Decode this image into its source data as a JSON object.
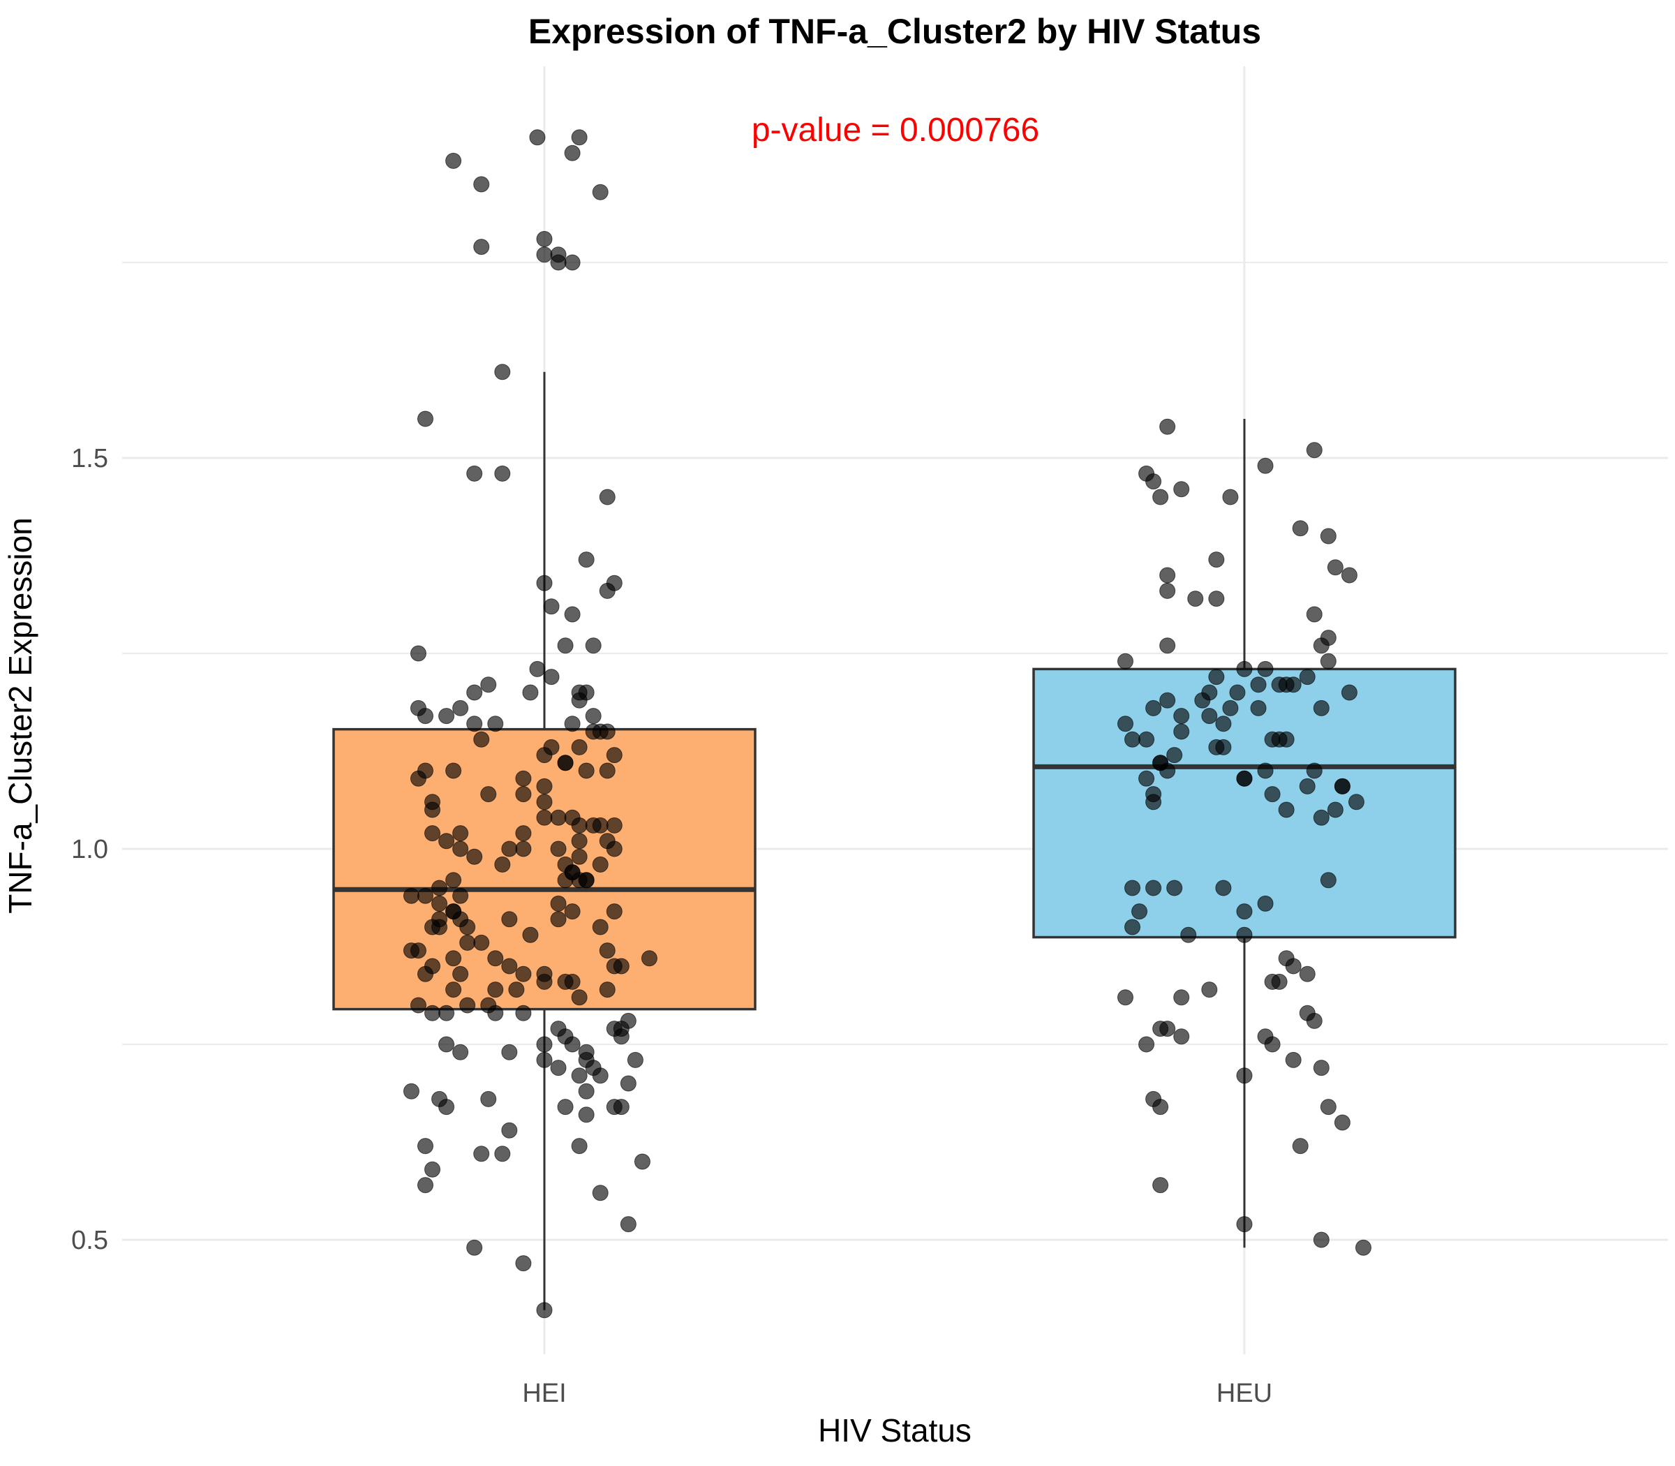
{
  "chart_data": {
    "type": "box",
    "title": "Expression of TNF-a_Cluster2 by HIV Status",
    "xlabel": "HIV Status",
    "ylabel": "TNF-a_Cluster2 Expression",
    "categories": [
      "HEI",
      "HEU"
    ],
    "y_ticks": [
      "0.5",
      "1.0",
      "1.5"
    ],
    "ylim": [
      0.33,
      2.05
    ],
    "grid": true,
    "annotation": {
      "text": "p-value = 0.000766",
      "color": "#ff0000"
    },
    "boxes": [
      {
        "name": "HEI",
        "fill": "#fdae71",
        "q1": 0.795,
        "median": 0.948,
        "q3": 1.153,
        "whisker_low": 0.41,
        "whisker_high": 1.61
      },
      {
        "name": "HEU",
        "fill": "#8ecfea",
        "q1": 0.887,
        "median": 1.105,
        "q3": 1.23,
        "whisker_low": 0.49,
        "whisker_high": 1.55
      }
    ],
    "points": [
      {
        "group": "HEI",
        "jitter": [
          0.05,
          -0.01,
          0.04,
          -0.13,
          -0.09,
          0.08,
          0.0,
          0.0,
          0.02,
          -0.09,
          0.02,
          0.04,
          -0.17,
          -0.06,
          -0.1,
          0.09,
          0.0,
          0.1,
          0.09,
          0.01,
          0.06,
          0.04,
          0.07,
          0.03,
          -0.01,
          -0.18,
          0.01,
          -0.08,
          -0.02,
          0.06,
          -0.1,
          -0.18,
          -0.12,
          -0.17,
          -0.07,
          -0.1,
          0.04,
          0.07,
          0.09,
          0.07,
          -0.14,
          -0.09,
          0.1,
          0.03,
          0.03,
          0.06,
          0.09,
          -0.18,
          -0.17,
          -0.08,
          -0.03,
          -0.16,
          0.02,
          0.04,
          0.0,
          0.07,
          0.08,
          0.05,
          -0.14,
          0.09,
          0.1,
          0.02,
          -0.03,
          0.05,
          -0.1,
          0.03,
          -0.06,
          0.08,
          0.04,
          0.05,
          0.06,
          -0.13,
          -0.15,
          -0.19,
          -0.17,
          -0.12,
          -0.15,
          0.02,
          0.04,
          0.1,
          -0.13,
          -0.05,
          -0.15,
          -0.12,
          0.02,
          0.08,
          -0.16,
          -0.11,
          -0.02,
          -0.09,
          -0.11,
          0.09,
          -0.19,
          -0.13,
          0.15,
          -0.05,
          -0.16,
          -0.12,
          -0.17,
          -0.03,
          0.04,
          0.0,
          -0.07,
          -0.04,
          0.09,
          0.05,
          -0.18,
          -0.11,
          -0.16,
          -0.07,
          0.02,
          0.1,
          0.11,
          0.03,
          0.0,
          0.04,
          0.06,
          -0.05,
          -0.12,
          0.06,
          0.13,
          0.07,
          0.08,
          0.05,
          0.12,
          -0.19,
          -0.15,
          -0.08,
          -0.14,
          0.11,
          0.03,
          0.1,
          -0.05,
          0.05,
          -0.09,
          -0.06,
          0.14,
          -0.16,
          -0.17,
          0.08,
          0.12,
          -0.1,
          -0.03,
          0.0,
          -0.06,
          -0.16,
          0.1,
          0.06,
          0.05,
          0.06,
          0.11,
          -0.08,
          -0.07,
          -0.03,
          -0.12,
          -0.14,
          -0.17,
          -0.16,
          0.08,
          0.05,
          -0.12,
          0.0,
          0.03,
          -0.03,
          0.01,
          0.05,
          -0.05,
          -0.14,
          0.11,
          0.04,
          0.03,
          0.05,
          -0.13,
          0.06,
          -0.13,
          -0.18,
          0.02,
          -0.03,
          0.1,
          -0.13,
          -0.15,
          0.12
        ],
        "values": [
          1.91,
          1.91,
          1.89,
          1.88,
          1.85,
          1.84,
          1.78,
          1.76,
          1.76,
          1.77,
          1.75,
          1.75,
          1.55,
          1.48,
          1.48,
          1.45,
          1.34,
          1.34,
          1.33,
          1.31,
          1.37,
          1.3,
          1.26,
          1.26,
          1.23,
          1.25,
          1.22,
          1.21,
          1.2,
          1.2,
          1.2,
          1.18,
          1.18,
          1.17,
          1.16,
          1.16,
          1.16,
          1.15,
          1.15,
          1.17,
          1.17,
          1.14,
          1.12,
          1.11,
          1.11,
          1.1,
          1.1,
          1.09,
          1.1,
          1.07,
          1.07,
          1.05,
          1.04,
          1.04,
          1.04,
          1.03,
          1.03,
          1.03,
          1.01,
          1.01,
          1.0,
          1.0,
          1.0,
          0.99,
          0.99,
          0.98,
          0.98,
          0.98,
          0.97,
          0.96,
          0.96,
          0.96,
          0.95,
          0.94,
          0.94,
          0.94,
          0.93,
          0.93,
          0.92,
          0.92,
          0.92,
          0.91,
          0.91,
          0.91,
          0.91,
          0.9,
          0.9,
          0.9,
          0.89,
          0.88,
          0.88,
          0.87,
          0.87,
          0.86,
          0.86,
          0.85,
          0.85,
          0.84,
          0.84,
          0.84,
          0.83,
          0.83,
          0.82,
          0.82,
          0.82,
          0.81,
          0.8,
          0.8,
          0.79,
          0.79,
          0.77,
          0.77,
          0.76,
          0.76,
          0.75,
          0.75,
          0.74,
          0.74,
          0.74,
          0.73,
          0.73,
          0.72,
          0.71,
          0.71,
          0.7,
          0.69,
          0.68,
          0.68,
          0.67,
          0.67,
          0.67,
          0.67,
          0.64,
          0.62,
          0.61,
          0.61,
          0.6,
          0.59,
          0.57,
          0.56,
          0.52,
          0.49,
          0.47,
          0.41,
          1.61,
          1.02,
          1.03,
          0.66,
          1.13,
          0.69,
          0.77,
          0.8,
          0.86,
          1.02,
          1.0,
          0.79,
          0.62,
          1.06,
          1.15,
          1.19,
          1.02,
          1.06,
          0.96,
          1.09,
          1.13,
          1.01,
          1.0,
          0.75,
          0.85,
          0.97,
          0.83,
          1.2,
          1.1,
          0.96,
          0.82,
          0.87,
          0.72,
          0.79,
          0.85,
          0.92,
          0.9,
          0.78,
          0.84,
          1.12,
          1.08,
          0.73
        ]
      },
      {
        "group": "HEU",
        "jitter": [
          -0.11,
          0.1,
          0.03,
          -0.14,
          -0.13,
          -0.09,
          -0.02,
          -0.12,
          0.08,
          0.12,
          -0.04,
          0.13,
          -0.11,
          -0.11,
          0.15,
          -0.07,
          -0.04,
          0.1,
          0.12,
          0.11,
          -0.17,
          -0.11,
          -0.17,
          0.12,
          0.0,
          0.09,
          -0.04,
          0.07,
          0.02,
          0.06,
          -0.05,
          -0.01,
          -0.14,
          -0.09,
          -0.1,
          -0.12,
          -0.06,
          -0.13,
          0.02,
          -0.09,
          0.11,
          0.04,
          0.05,
          0.15,
          0.03,
          0.1,
          0.09,
          0.14,
          -0.13,
          0.04,
          -0.14,
          -0.13,
          0.16,
          0.11,
          0.13,
          -0.12,
          0.0,
          -0.05,
          -0.03,
          -0.03,
          0.12,
          -0.13,
          -0.1,
          -0.16,
          0.0,
          -0.15,
          -0.16,
          0.0,
          0.06,
          0.07,
          0.09,
          0.05,
          0.04,
          0.09,
          0.1,
          -0.05,
          -0.09,
          -0.17,
          -0.11,
          -0.12,
          0.03,
          -0.09,
          -0.14,
          0.04,
          0.07,
          0.11,
          0.0,
          -0.13,
          -0.12,
          0.12,
          0.14,
          0.08,
          -0.12,
          0.0,
          0.11,
          0.17,
          0.06,
          -0.11,
          0.06,
          0.05,
          -0.02,
          -0.16,
          0.0,
          -0.03,
          -0.08,
          0.14,
          0.03,
          0.03,
          -0.04,
          -0.11
        ],
        "values": [
          1.54,
          1.51,
          1.49,
          1.48,
          1.47,
          1.46,
          1.45,
          1.45,
          1.41,
          1.4,
          1.37,
          1.36,
          1.35,
          1.33,
          1.35,
          1.32,
          1.32,
          1.3,
          1.27,
          1.26,
          1.24,
          1.26,
          1.16,
          1.24,
          1.23,
          1.22,
          1.22,
          1.21,
          1.21,
          1.21,
          1.2,
          1.2,
          1.14,
          1.15,
          1.12,
          1.11,
          1.19,
          1.18,
          1.18,
          1.17,
          1.18,
          1.14,
          1.14,
          1.2,
          1.1,
          1.1,
          1.08,
          1.08,
          1.06,
          1.07,
          1.09,
          1.07,
          1.06,
          1.04,
          1.05,
          1.11,
          1.09,
          1.17,
          1.16,
          1.13,
          0.96,
          0.95,
          0.95,
          0.95,
          0.92,
          0.92,
          0.9,
          0.89,
          0.86,
          0.85,
          0.84,
          0.83,
          0.83,
          0.79,
          0.78,
          0.82,
          0.81,
          0.81,
          0.77,
          0.77,
          0.76,
          0.76,
          0.75,
          0.75,
          0.73,
          0.72,
          0.71,
          0.68,
          0.67,
          0.67,
          0.65,
          0.62,
          0.57,
          0.52,
          0.5,
          0.49,
          1.14,
          1.1,
          1.05,
          1.21,
          1.18,
          1.14,
          1.09,
          0.95,
          0.89,
          1.08,
          1.23,
          0.93,
          1.13,
          1.19
        ]
      }
    ]
  }
}
